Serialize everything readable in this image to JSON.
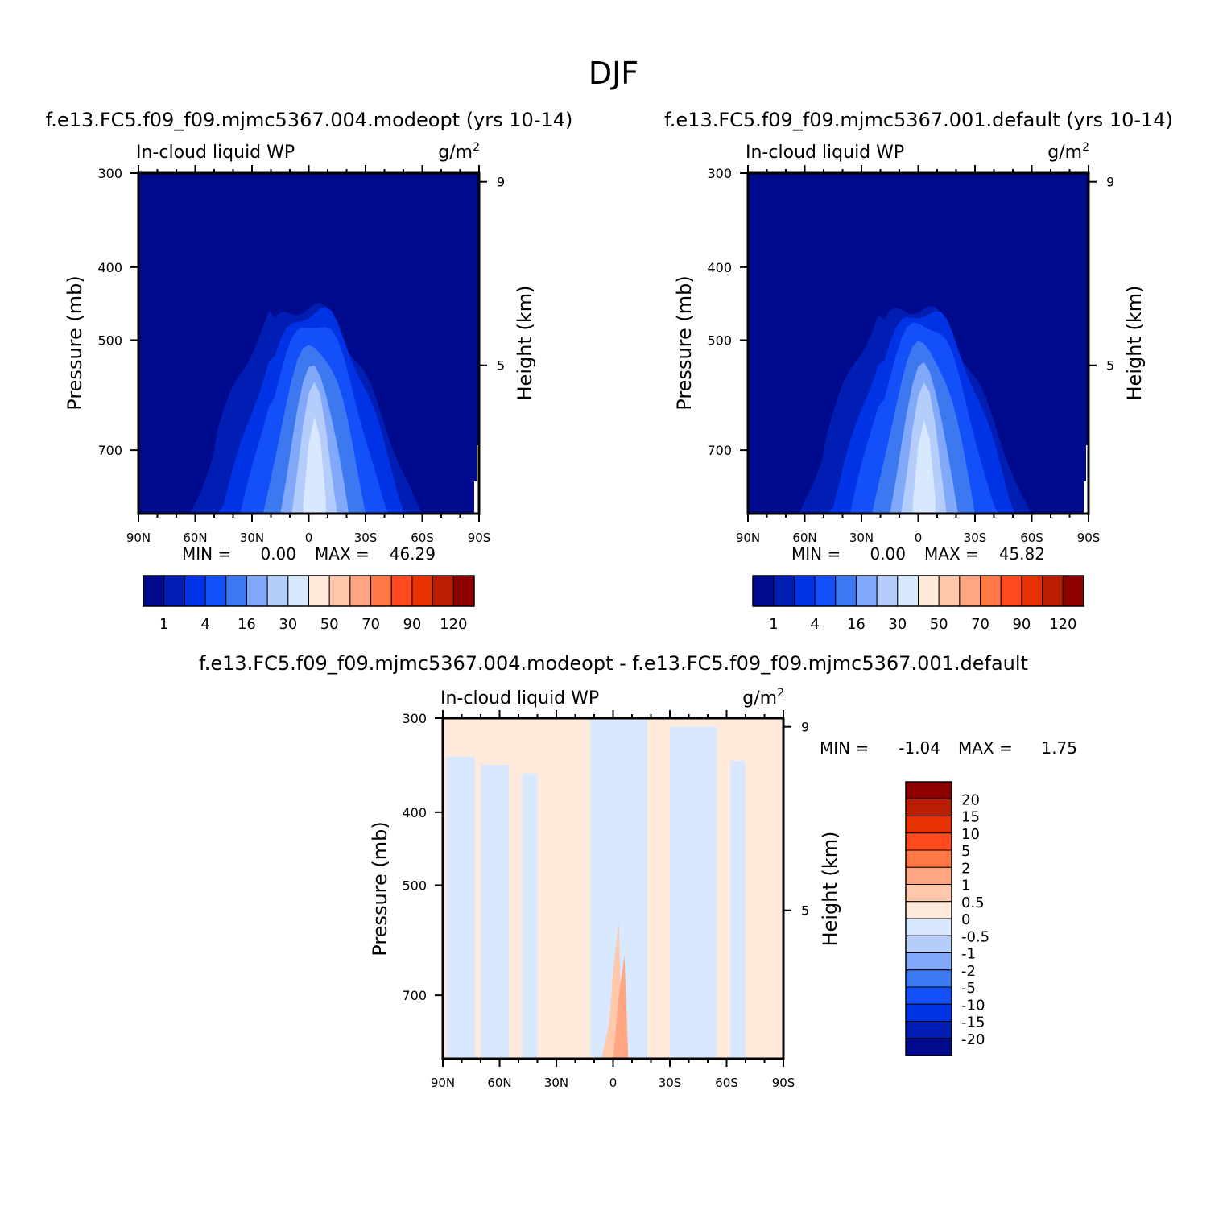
{
  "page_title": "DJF",
  "colors": {
    "abs_levels": [
      "#000a8c",
      "#001eb4",
      "#0032e6",
      "#1450fa",
      "#3c78f0",
      "#82a8fa",
      "#b4cdfa",
      "#d7e8ff",
      "#ffeadc",
      "#ffc8ab",
      "#ffa582",
      "#ff7846",
      "#ff4b1e",
      "#e63200",
      "#b91e00",
      "#8c0000"
    ],
    "diff_levels": [
      "#000a8c",
      "#001eb4",
      "#0032e6",
      "#1450fa",
      "#3c78f0",
      "#82a8fa",
      "#b4cdfa",
      "#d7e8ff",
      "#ffeadc",
      "#ffc8ab",
      "#ffa582",
      "#ff7846",
      "#ff4b1e",
      "#e63200",
      "#b91e00",
      "#8c0000"
    ]
  },
  "chart_data": [
    {
      "type": "heatmap",
      "title": "f.e13.FC5.f09_f09.mjmc5367.004.modeopt (yrs 10-14)",
      "variable": "In-cloud liquid WP",
      "units": "g/m",
      "units_sup": "2",
      "ylabel": "Pressure (mb)",
      "ylabel_right": "Height (km)",
      "x_ticks": [
        "90N",
        "60N",
        "30N",
        "0",
        "30S",
        "60S",
        "90S"
      ],
      "y_ticks": [
        "300",
        "400",
        "500",
        "700"
      ],
      "y_ticks_right": [
        "9",
        "5"
      ],
      "xlim": [
        90,
        -90
      ],
      "ylim": [
        300,
        850
      ],
      "min_label": "MIN =",
      "min_value": "0.00",
      "max_label": "MAX =",
      "max_value": "46.29",
      "colorbar_labels": [
        "1",
        "4",
        "16",
        "30",
        "50",
        "70",
        "90",
        "120"
      ],
      "field": {
        "lat": [
          90,
          80,
          70,
          60,
          50,
          40,
          30,
          25,
          20,
          15,
          10,
          5,
          0,
          -5,
          -10,
          -15,
          -20,
          -25,
          -30,
          -40,
          -50,
          -60,
          -70,
          -80,
          -90
        ],
        "top_level_idx": [
          0,
          0,
          1,
          2,
          3,
          3,
          4,
          4,
          5,
          5,
          5,
          6,
          7,
          7,
          6,
          6,
          5,
          5,
          4,
          3,
          2,
          2,
          1,
          0,
          0
        ],
        "peak_lat": -3,
        "max": 46.29
      }
    },
    {
      "type": "heatmap",
      "title": "f.e13.FC5.f09_f09.mjmc5367.001.default (yrs 10-14)",
      "variable": "In-cloud liquid WP",
      "units": "g/m",
      "units_sup": "2",
      "ylabel": "Pressure (mb)",
      "ylabel_right": "Height (km)",
      "x_ticks": [
        "90N",
        "60N",
        "30N",
        "0",
        "30S",
        "60S",
        "90S"
      ],
      "y_ticks": [
        "300",
        "400",
        "500",
        "700"
      ],
      "y_ticks_right": [
        "9",
        "5"
      ],
      "xlim": [
        90,
        -90
      ],
      "ylim": [
        300,
        850
      ],
      "min_label": "MIN =",
      "min_value": "0.00",
      "max_label": "MAX =",
      "max_value": "45.82",
      "colorbar_labels": [
        "1",
        "4",
        "16",
        "30",
        "50",
        "70",
        "90",
        "120"
      ],
      "field": {
        "peak_lat": -3,
        "max": 45.82
      }
    },
    {
      "type": "heatmap",
      "title": "f.e13.FC5.f09_f09.mjmc5367.004.modeopt - f.e13.FC5.f09_f09.mjmc5367.001.default",
      "variable": "In-cloud liquid WP",
      "units": "g/m",
      "units_sup": "2",
      "ylabel": "Pressure (mb)",
      "ylabel_right": "Height (km)",
      "x_ticks": [
        "90N",
        "60N",
        "30N",
        "0",
        "30S",
        "60S",
        "90S"
      ],
      "y_ticks": [
        "300",
        "400",
        "500",
        "700"
      ],
      "y_ticks_right": [
        "9",
        "5"
      ],
      "xlim": [
        90,
        -90
      ],
      "ylim": [
        300,
        850
      ],
      "min_label": "MIN =",
      "min_value": "-1.04",
      "max_label": "MAX =",
      "max_value": "1.75",
      "colorbar_labels": [
        "20",
        "15",
        "10",
        "5",
        "2",
        "1",
        "0.5",
        "0",
        "-0.5",
        "-1",
        "-2",
        "-5",
        "-10",
        "-15",
        "-20"
      ]
    }
  ]
}
